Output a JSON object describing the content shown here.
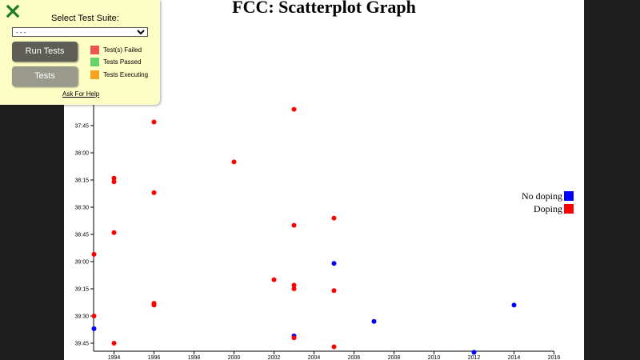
{
  "chart_data": {
    "type": "scatter",
    "title": "FCC: Scatterplot Graph",
    "xlabel": "",
    "ylabel": "",
    "x_ticks": [
      "1994",
      "1996",
      "1998",
      "2000",
      "2002",
      "2004",
      "2006",
      "2008",
      "2010",
      "2012",
      "2014",
      "2016"
    ],
    "y_ticks": [
      "37:45",
      "38:00",
      "38:15",
      "38:30",
      "38:45",
      "39:00",
      "39:15",
      "39:30",
      "39:45"
    ],
    "legend": [
      {
        "label": "No doping",
        "color": "#0000ff"
      },
      {
        "label": "Doping",
        "color": "#ff0000"
      }
    ],
    "series": [
      {
        "name": "No doping",
        "color": "#0000ff",
        "points": [
          {
            "x": 1993,
            "y": "39:37"
          },
          {
            "x": 2003,
            "y": "39:41"
          },
          {
            "x": 2005,
            "y": "39:01"
          },
          {
            "x": 2007,
            "y": "39:33"
          },
          {
            "x": 2012,
            "y": "39:50"
          },
          {
            "x": 2014,
            "y": "39:24"
          }
        ]
      },
      {
        "name": "Doping",
        "color": "#ff0000",
        "points": [
          {
            "x": 1993,
            "y": "38:56"
          },
          {
            "x": 1993,
            "y": "39:30"
          },
          {
            "x": 1994,
            "y": "38:14"
          },
          {
            "x": 1994,
            "y": "38:16"
          },
          {
            "x": 1994,
            "y": "38:44"
          },
          {
            "x": 1994,
            "y": "39:45"
          },
          {
            "x": 1996,
            "y": "37:43"
          },
          {
            "x": 1996,
            "y": "38:22"
          },
          {
            "x": 1996,
            "y": "39:23"
          },
          {
            "x": 1996,
            "y": "39:24"
          },
          {
            "x": 2000,
            "y": "38:05"
          },
          {
            "x": 2002,
            "y": "39:10"
          },
          {
            "x": 2003,
            "y": "37:36"
          },
          {
            "x": 2003,
            "y": "38:40"
          },
          {
            "x": 2003,
            "y": "39:13"
          },
          {
            "x": 2003,
            "y": "39:15"
          },
          {
            "x": 2003,
            "y": "39:42"
          },
          {
            "x": 2005,
            "y": "38:36"
          },
          {
            "x": 2005,
            "y": "39:16"
          },
          {
            "x": 2005,
            "y": "39:47"
          }
        ]
      }
    ]
  },
  "test_panel": {
    "close_icon": "close-x-icon",
    "suite_label": "Select Test Suite:",
    "suite_selected": "- - -",
    "run_tests_label": "Run Tests",
    "tests_label": "Tests",
    "legend": [
      {
        "label": "Test(s) Failed",
        "color": "#ef5350"
      },
      {
        "label": "Tests Passed",
        "color": "#66d26a"
      },
      {
        "label": "Tests Executing",
        "color": "#f5a21f"
      }
    ],
    "help_label": "Ask For Help"
  }
}
